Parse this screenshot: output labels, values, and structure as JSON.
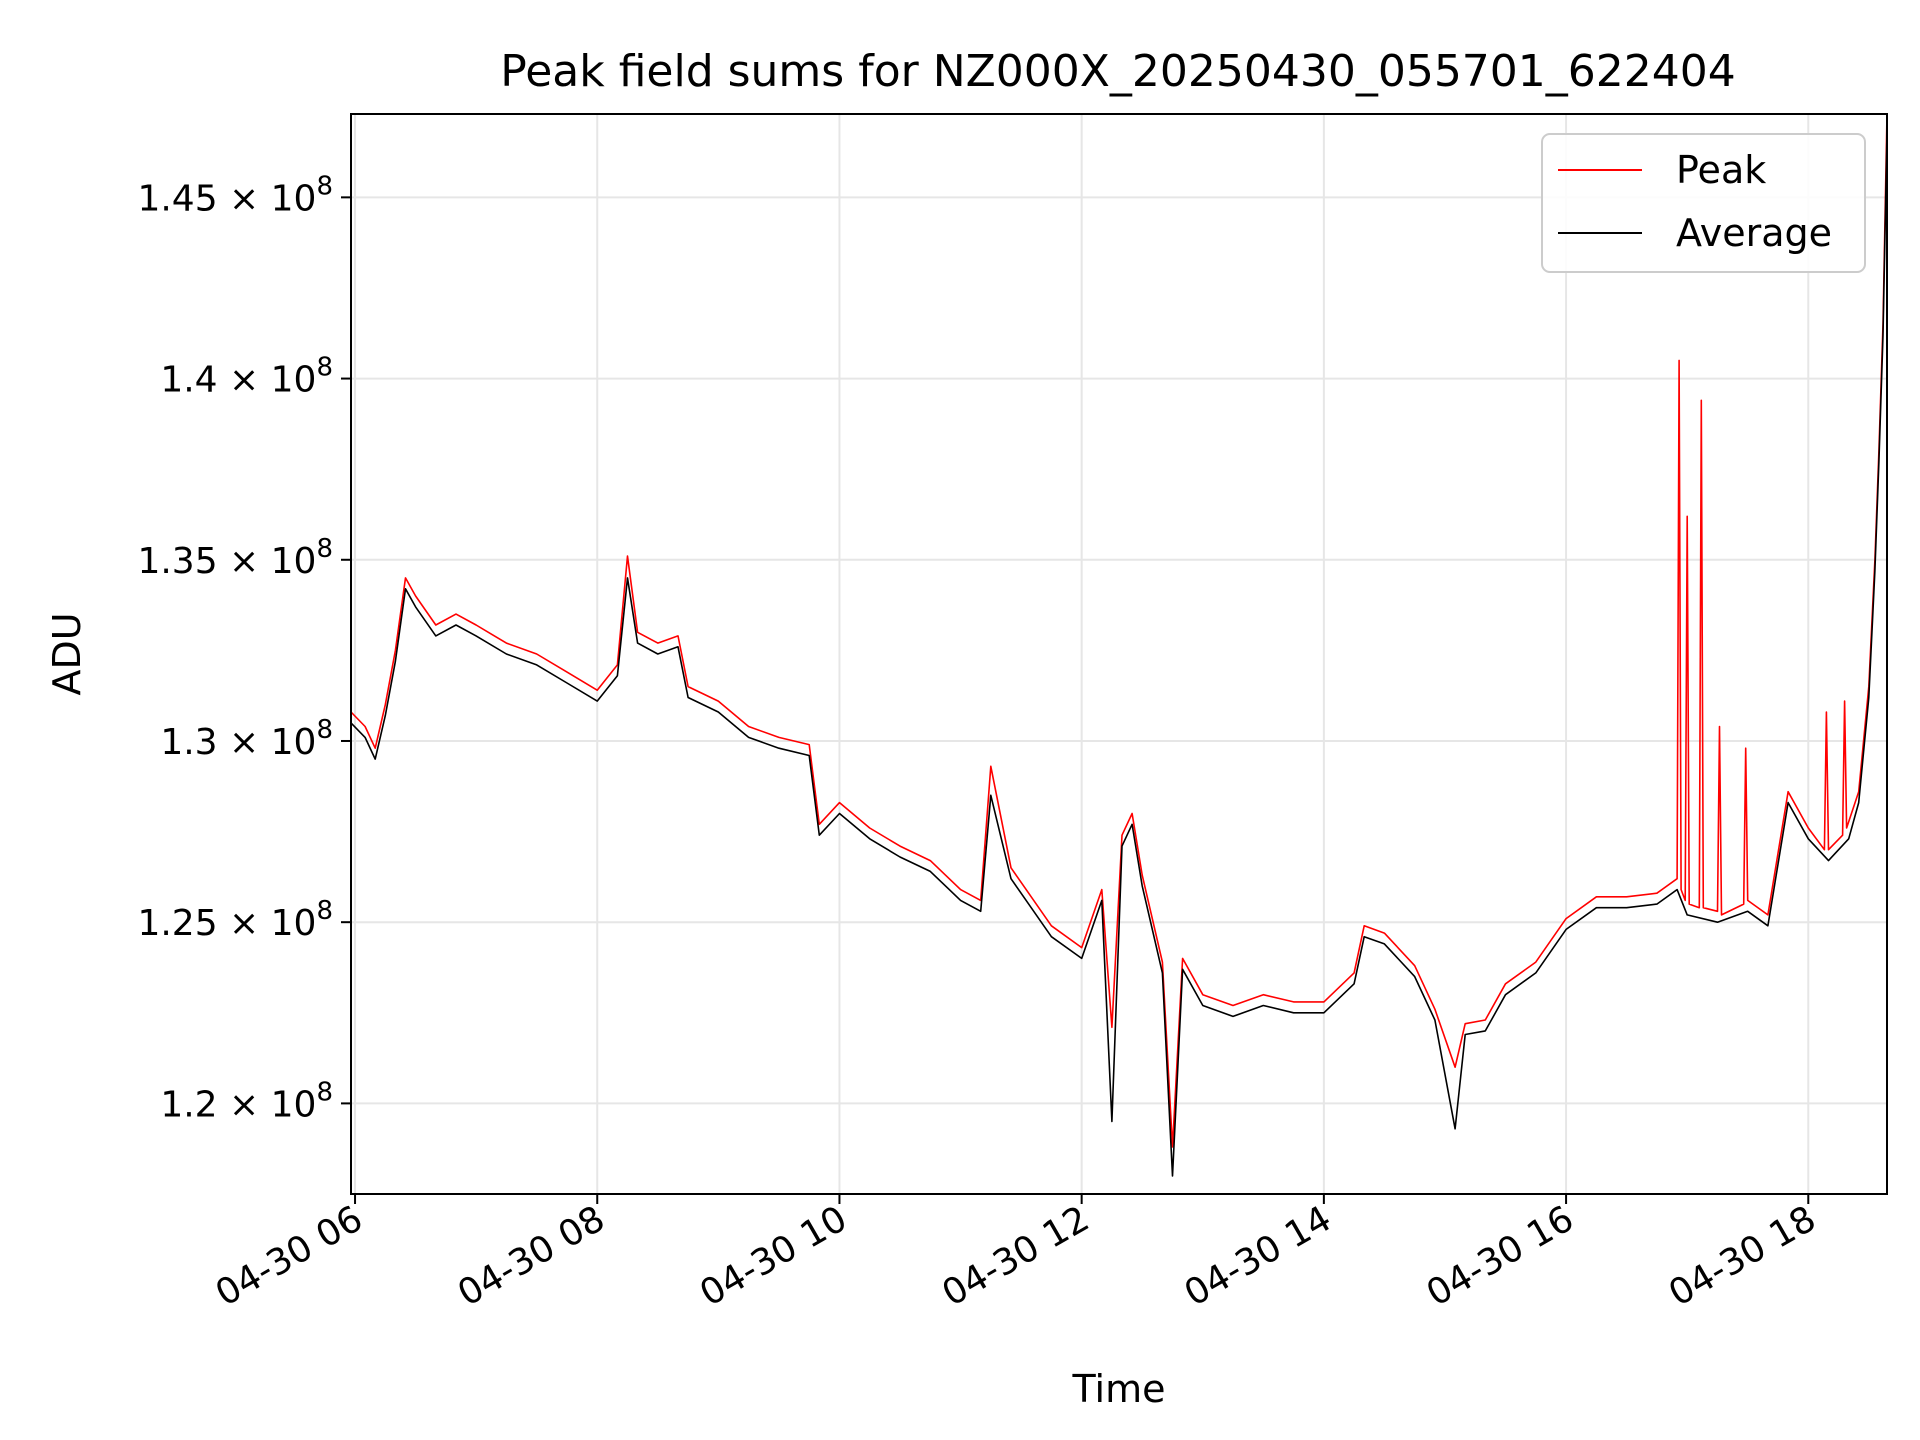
{
  "chart_data": {
    "type": "line",
    "title": "Peak field sums for NZ000X_20250430_055701_622404",
    "xlabel": "Time",
    "ylabel": "ADU",
    "x_axis": "date",
    "xlim": [
      "2025-04-30T05:58",
      "2025-04-30T18:39"
    ],
    "ylim": [
      117500000,
      147300000
    ],
    "x_ticks": [
      {
        "t": "2025-04-30T06:00",
        "label": "04-30 06"
      },
      {
        "t": "2025-04-30T08:00",
        "label": "04-30 08"
      },
      {
        "t": "2025-04-30T10:00",
        "label": "04-30 10"
      },
      {
        "t": "2025-04-30T12:00",
        "label": "04-30 12"
      },
      {
        "t": "2025-04-30T14:00",
        "label": "04-30 14"
      },
      {
        "t": "2025-04-30T16:00",
        "label": "04-30 16"
      },
      {
        "t": "2025-04-30T18:00",
        "label": "04-30 18"
      }
    ],
    "y_ticks": [
      {
        "v": 120000000,
        "mant": "1.2",
        "exp": "8"
      },
      {
        "v": 125000000,
        "mant": "1.25",
        "exp": "8"
      },
      {
        "v": 130000000,
        "mant": "1.3",
        "exp": "8"
      },
      {
        "v": 135000000,
        "mant": "1.35",
        "exp": "8"
      },
      {
        "v": 140000000,
        "mant": "1.4",
        "exp": "8"
      },
      {
        "v": 145000000,
        "mant": "1.45",
        "exp": "8"
      }
    ],
    "grid": true,
    "legend_position": "top-right",
    "colors": {
      "peak": "#ff0000",
      "average": "#000000",
      "grid": "#e6e6e6"
    },
    "series": [
      {
        "name": "Peak",
        "color": "#ff0000",
        "points": [
          [
            "2025-04-30T05:58",
            130800000
          ],
          [
            "2025-04-30T06:05",
            130400000
          ],
          [
            "2025-04-30T06:10",
            129800000
          ],
          [
            "2025-04-30T06:15",
            131000000
          ],
          [
            "2025-04-30T06:20",
            132500000
          ],
          [
            "2025-04-30T06:25",
            134500000
          ],
          [
            "2025-04-30T06:30",
            134000000
          ],
          [
            "2025-04-30T06:40",
            133200000
          ],
          [
            "2025-04-30T06:50",
            133500000
          ],
          [
            "2025-04-30T07:00",
            133200000
          ],
          [
            "2025-04-30T07:15",
            132700000
          ],
          [
            "2025-04-30T07:30",
            132400000
          ],
          [
            "2025-04-30T07:45",
            131900000
          ],
          [
            "2025-04-30T08:00",
            131400000
          ],
          [
            "2025-04-30T08:10",
            132100000
          ],
          [
            "2025-04-30T08:15",
            135100000
          ],
          [
            "2025-04-30T08:20",
            133000000
          ],
          [
            "2025-04-30T08:30",
            132700000
          ],
          [
            "2025-04-30T08:40",
            132900000
          ],
          [
            "2025-04-30T08:45",
            131500000
          ],
          [
            "2025-04-30T09:00",
            131100000
          ],
          [
            "2025-04-30T09:15",
            130400000
          ],
          [
            "2025-04-30T09:30",
            130100000
          ],
          [
            "2025-04-30T09:45",
            129900000
          ],
          [
            "2025-04-30T09:50",
            127700000
          ],
          [
            "2025-04-30T10:00",
            128300000
          ],
          [
            "2025-04-30T10:15",
            127600000
          ],
          [
            "2025-04-30T10:30",
            127100000
          ],
          [
            "2025-04-30T10:45",
            126700000
          ],
          [
            "2025-04-30T11:00",
            125900000
          ],
          [
            "2025-04-30T11:10",
            125600000
          ],
          [
            "2025-04-30T11:15",
            129300000
          ],
          [
            "2025-04-30T11:25",
            126500000
          ],
          [
            "2025-04-30T11:35",
            125700000
          ],
          [
            "2025-04-30T11:45",
            124900000
          ],
          [
            "2025-04-30T12:00",
            124300000
          ],
          [
            "2025-04-30T12:10",
            125900000
          ],
          [
            "2025-04-30T12:15",
            122100000
          ],
          [
            "2025-04-30T12:20",
            127400000
          ],
          [
            "2025-04-30T12:25",
            128000000
          ],
          [
            "2025-04-30T12:30",
            126300000
          ],
          [
            "2025-04-30T12:40",
            123900000
          ],
          [
            "2025-04-30T12:45",
            118800000
          ],
          [
            "2025-04-30T12:50",
            124000000
          ],
          [
            "2025-04-30T13:00",
            123000000
          ],
          [
            "2025-04-30T13:15",
            122700000
          ],
          [
            "2025-04-30T13:30",
            123000000
          ],
          [
            "2025-04-30T13:45",
            122800000
          ],
          [
            "2025-04-30T14:00",
            122800000
          ],
          [
            "2025-04-30T14:15",
            123600000
          ],
          [
            "2025-04-30T14:20",
            124900000
          ],
          [
            "2025-04-30T14:30",
            124700000
          ],
          [
            "2025-04-30T14:45",
            123800000
          ],
          [
            "2025-04-30T14:55",
            122600000
          ],
          [
            "2025-04-30T15:05",
            121000000
          ],
          [
            "2025-04-30T15:10",
            122200000
          ],
          [
            "2025-04-30T15:20",
            122300000
          ],
          [
            "2025-04-30T15:30",
            123300000
          ],
          [
            "2025-04-30T15:45",
            123900000
          ],
          [
            "2025-04-30T16:00",
            125100000
          ],
          [
            "2025-04-30T16:15",
            125700000
          ],
          [
            "2025-04-30T16:30",
            125700000
          ],
          [
            "2025-04-30T16:45",
            125800000
          ],
          [
            "2025-04-30T16:55",
            126200000
          ],
          [
            "2025-04-30T16:56",
            140500000
          ],
          [
            "2025-04-30T16:57",
            125900000
          ],
          [
            "2025-04-30T16:59",
            125600000
          ],
          [
            "2025-04-30T17:00",
            136200000
          ],
          [
            "2025-04-30T17:01",
            125500000
          ],
          [
            "2025-04-30T17:06",
            125400000
          ],
          [
            "2025-04-30T17:07",
            139400000
          ],
          [
            "2025-04-30T17:08",
            125400000
          ],
          [
            "2025-04-30T17:15",
            125300000
          ],
          [
            "2025-04-30T17:16",
            130400000
          ],
          [
            "2025-04-30T17:17",
            125200000
          ],
          [
            "2025-04-30T17:28",
            125500000
          ],
          [
            "2025-04-30T17:29",
            129800000
          ],
          [
            "2025-04-30T17:30",
            125600000
          ],
          [
            "2025-04-30T17:40",
            125200000
          ],
          [
            "2025-04-30T17:50",
            128600000
          ],
          [
            "2025-04-30T18:00",
            127600000
          ],
          [
            "2025-04-30T18:08",
            127000000
          ],
          [
            "2025-04-30T18:09",
            130800000
          ],
          [
            "2025-04-30T18:10",
            127000000
          ],
          [
            "2025-04-30T18:17",
            127400000
          ],
          [
            "2025-04-30T18:18",
            131100000
          ],
          [
            "2025-04-30T18:19",
            127600000
          ],
          [
            "2025-04-30T18:25",
            128600000
          ],
          [
            "2025-04-30T18:30",
            131500000
          ],
          [
            "2025-04-30T18:33",
            135000000
          ],
          [
            "2025-04-30T18:35",
            138000000
          ],
          [
            "2025-04-30T18:37",
            141500000
          ],
          [
            "2025-04-30T18:39",
            147300000
          ]
        ]
      },
      {
        "name": "Average",
        "color": "#000000",
        "points": [
          [
            "2025-04-30T05:58",
            130500000
          ],
          [
            "2025-04-30T06:05",
            130100000
          ],
          [
            "2025-04-30T06:10",
            129500000
          ],
          [
            "2025-04-30T06:15",
            130700000
          ],
          [
            "2025-04-30T06:20",
            132200000
          ],
          [
            "2025-04-30T06:25",
            134200000
          ],
          [
            "2025-04-30T06:30",
            133700000
          ],
          [
            "2025-04-30T06:40",
            132900000
          ],
          [
            "2025-04-30T06:50",
            133200000
          ],
          [
            "2025-04-30T07:00",
            132900000
          ],
          [
            "2025-04-30T07:15",
            132400000
          ],
          [
            "2025-04-30T07:30",
            132100000
          ],
          [
            "2025-04-30T07:45",
            131600000
          ],
          [
            "2025-04-30T08:00",
            131100000
          ],
          [
            "2025-04-30T08:10",
            131800000
          ],
          [
            "2025-04-30T08:15",
            134500000
          ],
          [
            "2025-04-30T08:20",
            132700000
          ],
          [
            "2025-04-30T08:30",
            132400000
          ],
          [
            "2025-04-30T08:40",
            132600000
          ],
          [
            "2025-04-30T08:45",
            131200000
          ],
          [
            "2025-04-30T09:00",
            130800000
          ],
          [
            "2025-04-30T09:15",
            130100000
          ],
          [
            "2025-04-30T09:30",
            129800000
          ],
          [
            "2025-04-30T09:45",
            129600000
          ],
          [
            "2025-04-30T09:50",
            127400000
          ],
          [
            "2025-04-30T10:00",
            128000000
          ],
          [
            "2025-04-30T10:15",
            127300000
          ],
          [
            "2025-04-30T10:30",
            126800000
          ],
          [
            "2025-04-30T10:45",
            126400000
          ],
          [
            "2025-04-30T11:00",
            125600000
          ],
          [
            "2025-04-30T11:10",
            125300000
          ],
          [
            "2025-04-30T11:15",
            128500000
          ],
          [
            "2025-04-30T11:25",
            126200000
          ],
          [
            "2025-04-30T11:35",
            125400000
          ],
          [
            "2025-04-30T11:45",
            124600000
          ],
          [
            "2025-04-30T12:00",
            124000000
          ],
          [
            "2025-04-30T12:10",
            125600000
          ],
          [
            "2025-04-30T12:15",
            119500000
          ],
          [
            "2025-04-30T12:20",
            127100000
          ],
          [
            "2025-04-30T12:25",
            127700000
          ],
          [
            "2025-04-30T12:30",
            126000000
          ],
          [
            "2025-04-30T12:40",
            123600000
          ],
          [
            "2025-04-30T12:45",
            118000000
          ],
          [
            "2025-04-30T12:50",
            123700000
          ],
          [
            "2025-04-30T13:00",
            122700000
          ],
          [
            "2025-04-30T13:15",
            122400000
          ],
          [
            "2025-04-30T13:30",
            122700000
          ],
          [
            "2025-04-30T13:45",
            122500000
          ],
          [
            "2025-04-30T14:00",
            122500000
          ],
          [
            "2025-04-30T14:15",
            123300000
          ],
          [
            "2025-04-30T14:20",
            124600000
          ],
          [
            "2025-04-30T14:30",
            124400000
          ],
          [
            "2025-04-30T14:45",
            123500000
          ],
          [
            "2025-04-30T14:55",
            122300000
          ],
          [
            "2025-04-30T15:05",
            119300000
          ],
          [
            "2025-04-30T15:10",
            121900000
          ],
          [
            "2025-04-30T15:20",
            122000000
          ],
          [
            "2025-04-30T15:30",
            123000000
          ],
          [
            "2025-04-30T15:45",
            123600000
          ],
          [
            "2025-04-30T16:00",
            124800000
          ],
          [
            "2025-04-30T16:15",
            125400000
          ],
          [
            "2025-04-30T16:30",
            125400000
          ],
          [
            "2025-04-30T16:45",
            125500000
          ],
          [
            "2025-04-30T16:55",
            125900000
          ],
          [
            "2025-04-30T17:00",
            125200000
          ],
          [
            "2025-04-30T17:15",
            125000000
          ],
          [
            "2025-04-30T17:30",
            125300000
          ],
          [
            "2025-04-30T17:40",
            124900000
          ],
          [
            "2025-04-30T17:50",
            128300000
          ],
          [
            "2025-04-30T18:00",
            127300000
          ],
          [
            "2025-04-30T18:10",
            126700000
          ],
          [
            "2025-04-30T18:20",
            127300000
          ],
          [
            "2025-04-30T18:25",
            128300000
          ],
          [
            "2025-04-30T18:30",
            131200000
          ],
          [
            "2025-04-30T18:33",
            134700000
          ],
          [
            "2025-04-30T18:35",
            137700000
          ],
          [
            "2025-04-30T18:37",
            141200000
          ],
          [
            "2025-04-30T18:39",
            146800000
          ]
        ]
      }
    ]
  }
}
